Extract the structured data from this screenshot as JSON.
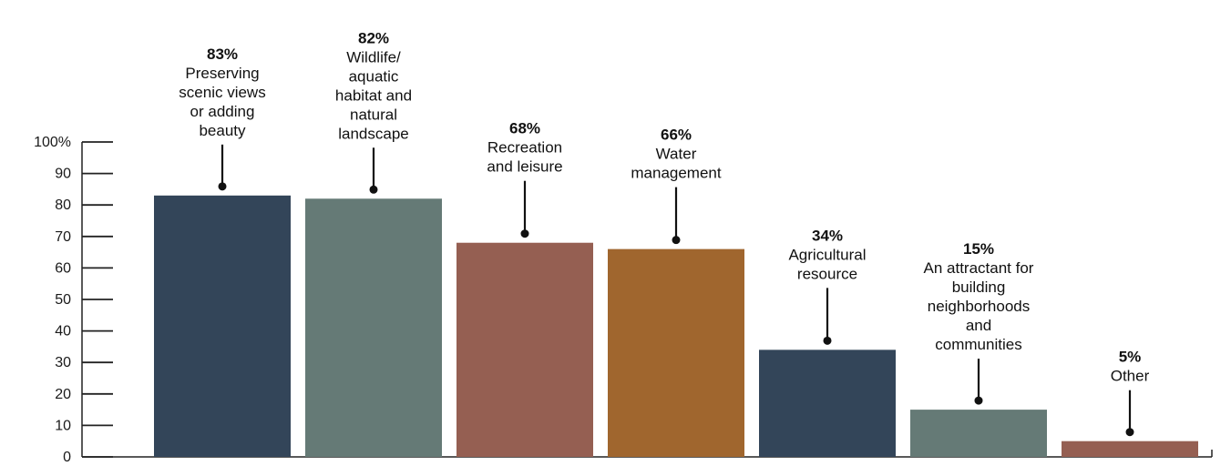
{
  "chart_data": {
    "type": "bar",
    "title": "",
    "xlabel": "",
    "ylabel": "",
    "ylim": [
      0,
      100
    ],
    "y_ticks": [
      0,
      10,
      20,
      30,
      40,
      50,
      60,
      70,
      80,
      90,
      100
    ],
    "y_tick_labels": [
      "0",
      "10",
      "20",
      "30",
      "40",
      "50",
      "60",
      "70",
      "80",
      "90",
      "100%"
    ],
    "grid": false,
    "legend": "none",
    "categories": [
      "Preserving scenic views or adding beauty",
      "Wildlife/ aquatic habitat and natural landscape",
      "Recreation and leisure",
      "Water management",
      "Agricultural resource",
      "An attractant for building neighborhoods and communities",
      "Other"
    ],
    "category_label_lines": [
      [
        "Preserving",
        "scenic views",
        "or adding",
        "beauty"
      ],
      [
        "Wildlife/",
        "aquatic",
        "habitat and",
        "natural",
        "landscape"
      ],
      [
        "Recreation",
        "and leisure"
      ],
      [
        "Water",
        "management"
      ],
      [
        "Agricultural",
        "resource"
      ],
      [
        "An attractant for",
        "building",
        "neighborhoods",
        "and",
        "communities"
      ],
      [
        "Other"
      ]
    ],
    "values": [
      83,
      82,
      68,
      66,
      34,
      15,
      5
    ],
    "value_labels": [
      "83%",
      "82%",
      "68%",
      "66%",
      "34%",
      "15%",
      "5%"
    ],
    "colors": [
      "#334559",
      "#657a76",
      "#955f52",
      "#a0662e",
      "#334559",
      "#657a76",
      "#955f52"
    ]
  }
}
